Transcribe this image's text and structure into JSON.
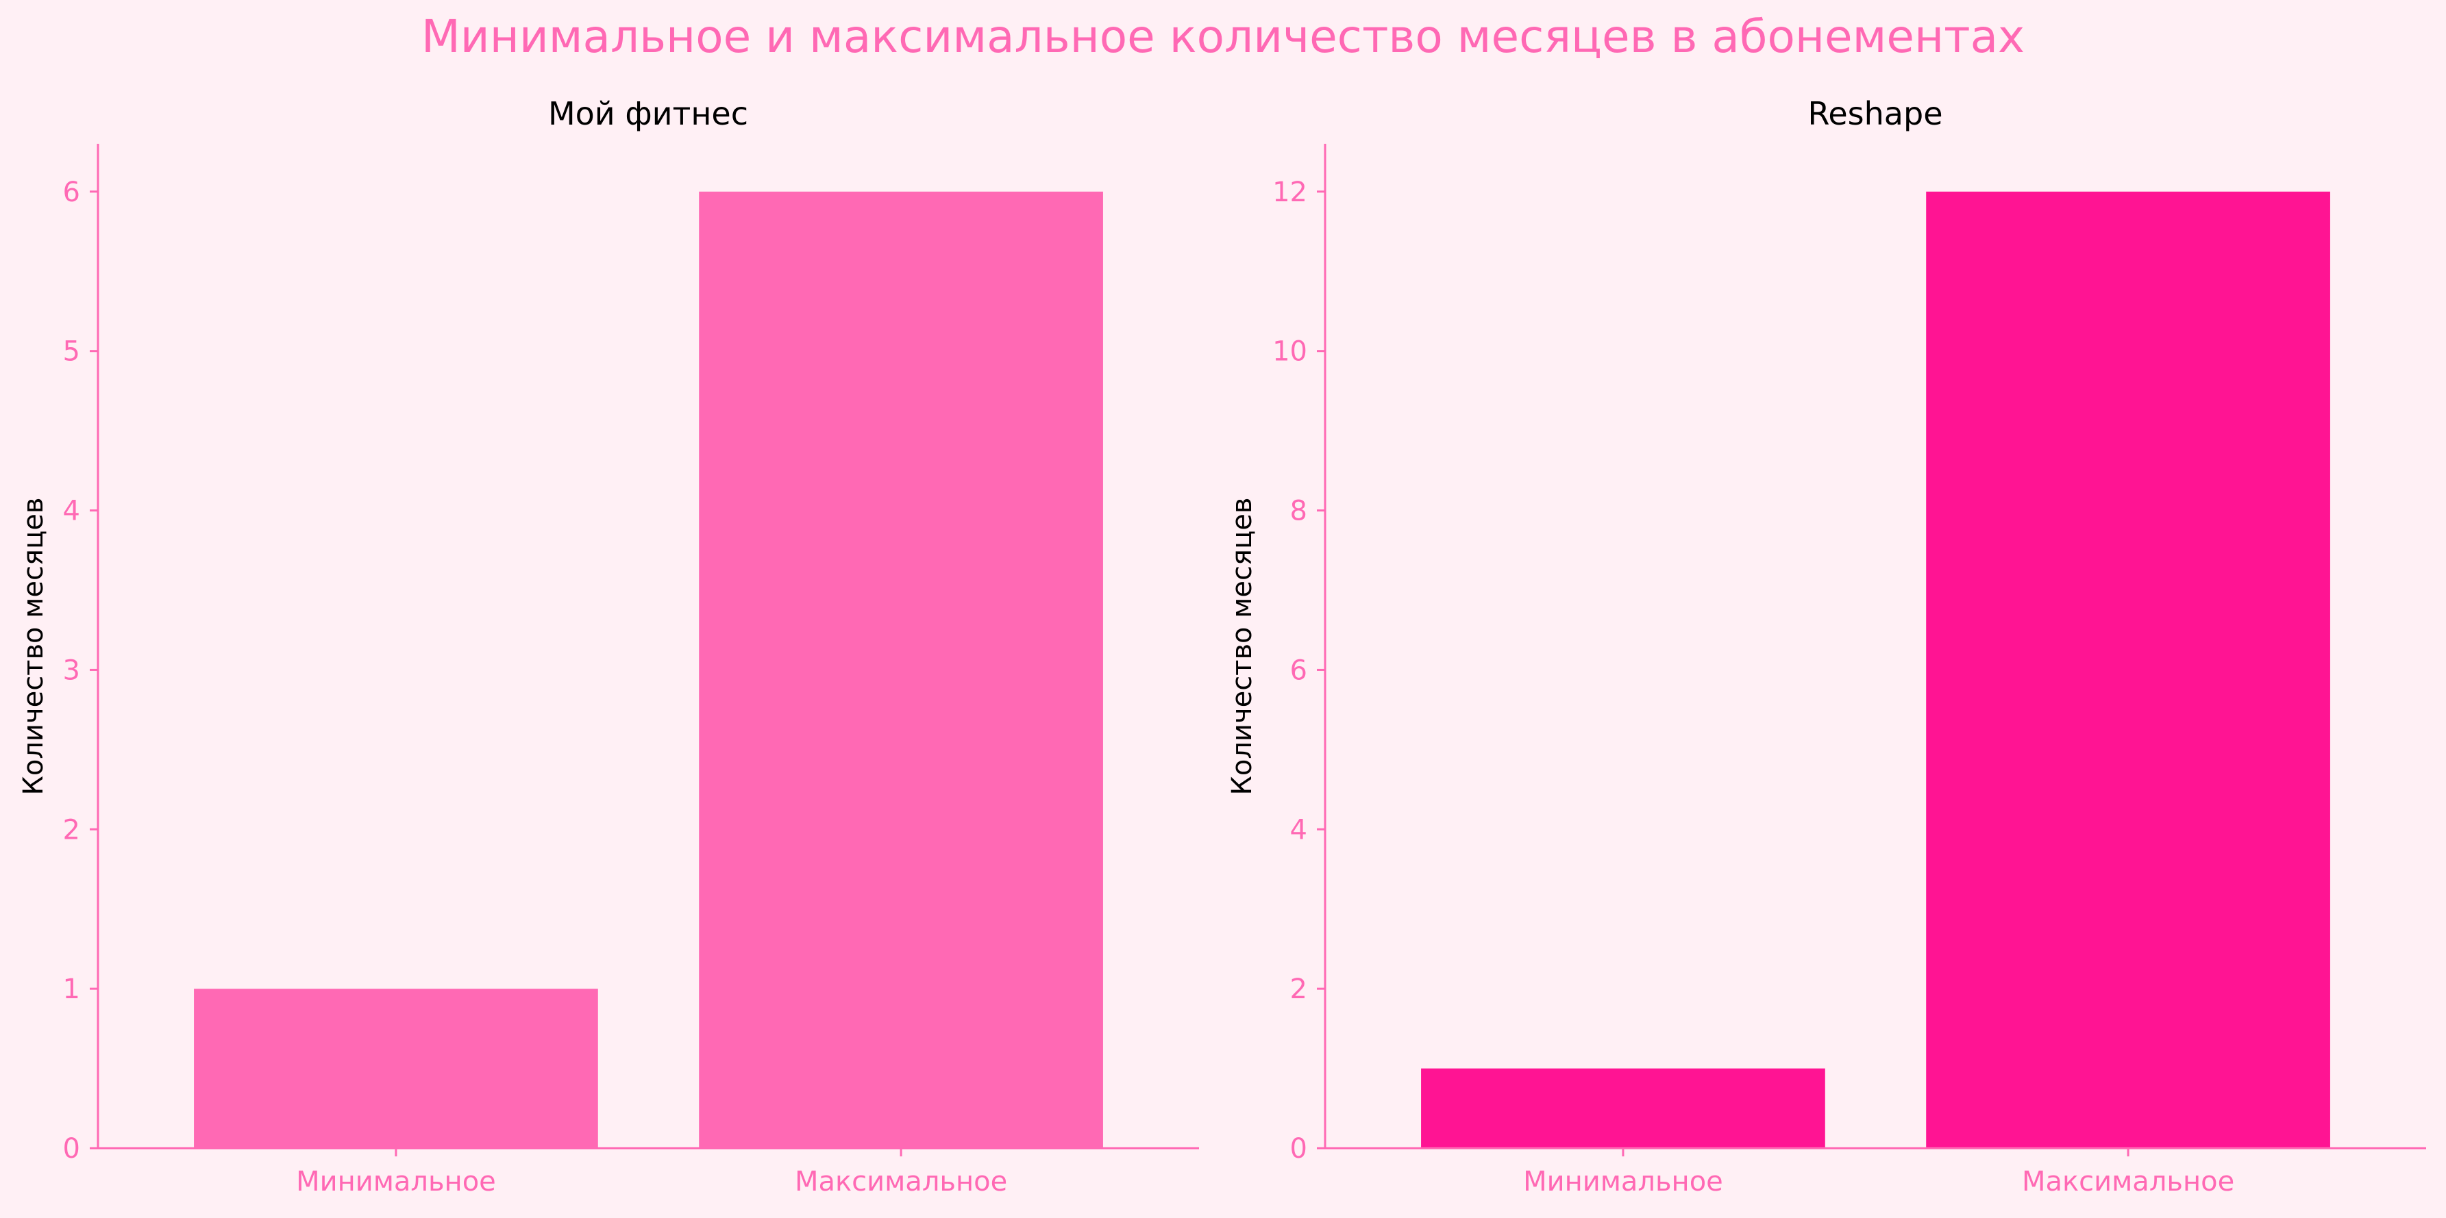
{
  "figure": {
    "title": "Минимальное и максимальное количество месяцев в абонементах",
    "title_color": "#ff69b4",
    "background": "#fff0f5",
    "axis_color": "#ff69b4",
    "tick_label_color": "#ff69b4"
  },
  "chart_data": [
    {
      "type": "bar",
      "title": "Мой фитнес",
      "xlabel": "",
      "ylabel": "Количество месяцев",
      "categories": [
        "Минимальное",
        "Максимальное"
      ],
      "values": [
        1,
        6
      ],
      "ylim": [
        0,
        6.3
      ],
      "yticks": [
        0,
        1,
        2,
        3,
        4,
        5,
        6
      ],
      "bar_color": "#ff69b4",
      "grid": false
    },
    {
      "type": "bar",
      "title": "Reshape",
      "xlabel": "",
      "ylabel": "Количество месяцев",
      "categories": [
        "Минимальное",
        "Максимальное"
      ],
      "values": [
        1,
        12
      ],
      "ylim": [
        0,
        12.6
      ],
      "yticks": [
        0,
        2,
        4,
        6,
        8,
        10,
        12
      ],
      "bar_color": "#ff1493",
      "grid": false
    }
  ]
}
